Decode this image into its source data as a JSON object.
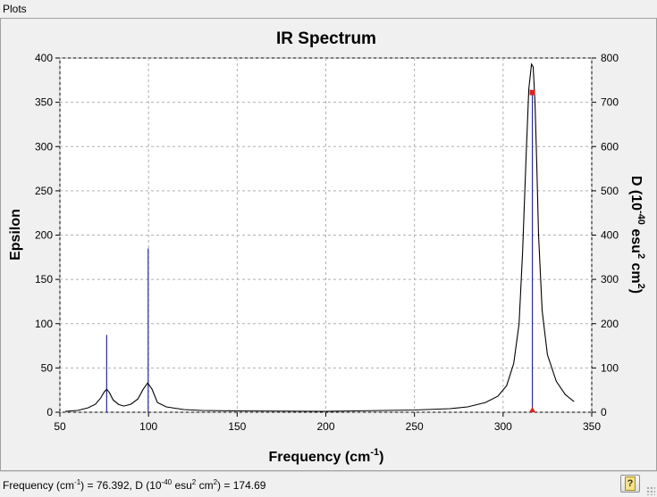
{
  "window": {
    "title": "Plots"
  },
  "chart_data": {
    "type": "line",
    "title": "IR Spectrum",
    "xlabel": "Frequency (cm",
    "xlabel_sup": "-1",
    "xlabel_close": ")",
    "ylabel": "Epsilon",
    "y2label": "D (10",
    "y2label_sup1": "-40",
    "y2label_mid": " esu",
    "y2label_sup2": "2",
    "y2label_mid2": " cm",
    "y2label_sup3": "2",
    "y2label_close": ")",
    "xlim": [
      50,
      350
    ],
    "ylim": [
      0,
      400
    ],
    "y2lim": [
      0,
      800
    ],
    "xticks": [
      50,
      100,
      150,
      200,
      250,
      300,
      350
    ],
    "yticks": [
      0,
      50,
      100,
      150,
      200,
      250,
      300,
      350,
      400
    ],
    "y2ticks": [
      0,
      100,
      200,
      300,
      400,
      500,
      600,
      700,
      800
    ],
    "grid": true,
    "series": [
      {
        "values": [
          [
            53,
            1
          ],
          [
            60,
            2
          ],
          [
            66,
            5
          ],
          [
            70,
            9
          ],
          [
            73,
            16
          ],
          [
            75,
            23
          ],
          [
            76.4,
            26
          ],
          [
            78,
            22
          ],
          [
            80,
            14
          ],
          [
            83,
            9
          ],
          [
            86,
            7
          ],
          [
            90,
            9
          ],
          [
            94,
            15
          ],
          [
            97,
            26
          ],
          [
            99.5,
            33
          ],
          [
            102,
            26
          ],
          [
            105,
            11
          ],
          [
            110,
            6
          ],
          [
            120,
            3
          ],
          [
            130,
            2
          ],
          [
            150,
            1.5
          ],
          [
            200,
            1
          ],
          [
            250,
            2.5
          ],
          [
            270,
            4
          ],
          [
            280,
            6
          ],
          [
            290,
            11
          ],
          [
            297,
            18
          ],
          [
            302,
            30
          ],
          [
            306,
            55
          ],
          [
            309,
            100
          ],
          [
            311,
            180
          ],
          [
            313,
            290
          ],
          [
            314.5,
            365
          ],
          [
            316,
            393
          ],
          [
            317,
            390
          ],
          [
            318,
            350
          ],
          [
            319,
            280
          ],
          [
            320,
            200
          ],
          [
            322,
            115
          ],
          [
            325,
            65
          ],
          [
            330,
            35
          ],
          [
            335,
            20
          ],
          [
            340,
            12
          ]
        ],
        "color": "#000000"
      }
    ],
    "sticks": [
      {
        "x": 76.392,
        "d": 174.69,
        "color": "#2a2aa0"
      },
      {
        "x": 99.8,
        "d": 370,
        "color": "#2a2aa0"
      },
      {
        "x": 316.5,
        "d": 722,
        "color": "#2a2aa0"
      }
    ],
    "selected_marker": {
      "x": 316.5,
      "color": "#e02020"
    }
  },
  "status": {
    "prefix": "Frequency (cm",
    "sup1": "-1",
    "mid1": ") = 76.392, D (10",
    "sup2": "-40",
    "mid2": " esu",
    "sup3": "2",
    "mid3": " cm",
    "sup4": "2",
    "suffix": ") = 174.69"
  },
  "help_button": {
    "icon": "help-book-icon",
    "glyph": "?"
  }
}
